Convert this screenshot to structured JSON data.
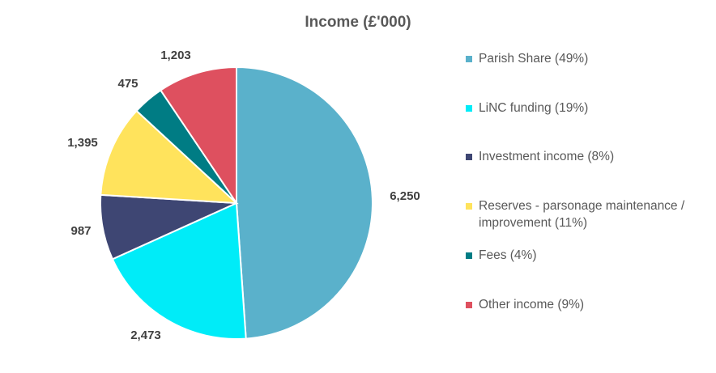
{
  "chart_data": {
    "type": "pie",
    "title": "Income (£'000)",
    "slices": [
      {
        "label": "Parish Share",
        "legend": "Parish Share (49%)",
        "value": 6250,
        "value_label": "6,250",
        "color": "#5AB1CB"
      },
      {
        "label": "LiNC funding",
        "legend": "LiNC funding (19%)",
        "value": 2473,
        "value_label": "2,473",
        "color": "#00ECF8"
      },
      {
        "label": "Investment income",
        "legend": "Investment income (8%)",
        "value": 987,
        "value_label": "987",
        "color": "#3E4673"
      },
      {
        "label": "Reserves - parsonage maintenance / improvement",
        "legend": "Reserves - parsonage maintenance / improvement (11%)",
        "value": 1395,
        "value_label": "1,395",
        "color": "#FFE35C"
      },
      {
        "label": "Fees",
        "legend": "Fees (4%)",
        "value": 475,
        "value_label": "475",
        "color": "#007C84"
      },
      {
        "label": "Other income",
        "legend": "Other income (9%)",
        "value": 1203,
        "value_label": "1,203",
        "color": "#DE505F"
      }
    ],
    "legend_position": "right"
  }
}
